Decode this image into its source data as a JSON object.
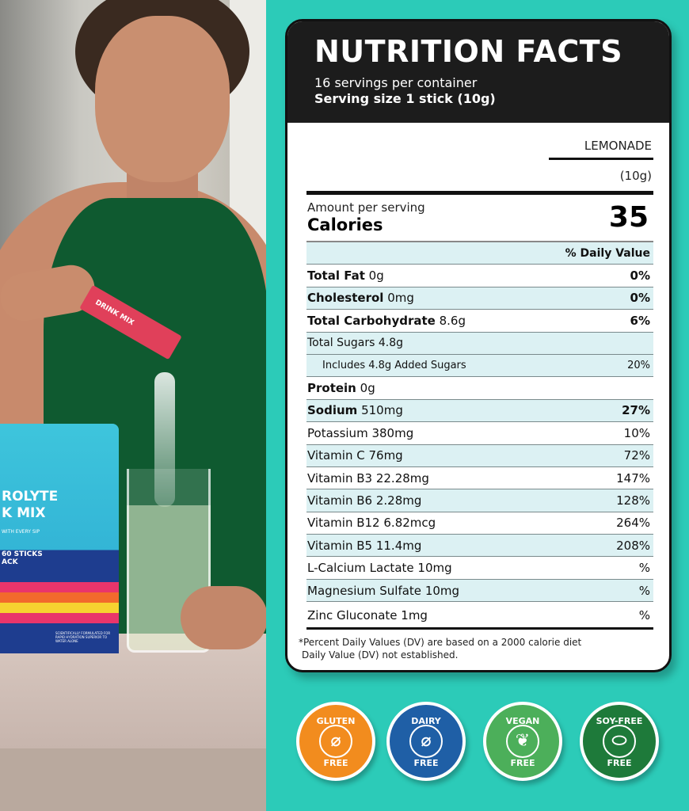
{
  "photo": {
    "package": {
      "line1": "ROLYTE",
      "line2": "K MIX",
      "tagline": "WITH EVERY SIP",
      "count": "60 STICKS",
      "pack": "ACK",
      "fine": "SCIENTIFICALLY FORMULATED FOR RAPID HYDRATION SUPERIOR TO WATER ALONE"
    },
    "stick_label": "DRINK MIX"
  },
  "label": {
    "title": "NUTRITION FACTS",
    "servings": "16 servings per container",
    "serving_size": "Serving size 1 stick (10g)",
    "flavor": "LEMONADE",
    "flavor_weight": "(10g)",
    "amount_per_serving": "Amount per serving",
    "calories_label": "Calories",
    "calories": "35",
    "dv_header": "% Daily Value",
    "rows": [
      {
        "name": "Total Fat",
        "amount": "0g",
        "dv": "0%"
      },
      {
        "name": "Cholesterol",
        "amount": "0mg",
        "dv": "0%"
      },
      {
        "name": "Total Carbohydrate",
        "amount": "8.6g",
        "dv": "6%"
      },
      {
        "name": "Total Sugars",
        "amount": "4.8g",
        "dv": ""
      },
      {
        "name": "Includes 4.8g Added Sugars",
        "amount": "",
        "dv": "20%"
      },
      {
        "name": "Protein",
        "amount": "0g",
        "dv": ""
      },
      {
        "name": "Sodium",
        "amount": "510mg",
        "dv": "27%"
      },
      {
        "name": "Potassium",
        "amount": "380mg",
        "dv": "10%"
      },
      {
        "name": "Vitamin C",
        "amount": "76mg",
        "dv": "72%"
      },
      {
        "name": "Vitamin B3",
        "amount": "22.28mg",
        "dv": "147%"
      },
      {
        "name": "Vitamin B6",
        "amount": "2.28mg",
        "dv": "128%"
      },
      {
        "name": "Vitamin B12",
        "amount": "6.82mcg",
        "dv": "264%"
      },
      {
        "name": "Vitamin B5",
        "amount": "11.4mg",
        "dv": "208%"
      },
      {
        "name": "L-Calcium Lactate",
        "amount": "10mg",
        "dv": "%"
      },
      {
        "name": "Magnesium Sulfate",
        "amount": "10mg",
        "dv": "%"
      },
      {
        "name": "Zinc Gluconate",
        "amount": "1mg",
        "dv": "%"
      }
    ],
    "footnote1": "*Percent Daily Values (DV) are based on a 2000 calorie diet",
    "footnote2": "Daily Value (DV) not established."
  },
  "badges": [
    {
      "top": "GLUTEN",
      "bottom": "FREE",
      "icon": "wheat-crossed-icon",
      "color": "#f28c1e"
    },
    {
      "top": "DAIRY",
      "bottom": "FREE",
      "icon": "milk-bottle-crossed-icon",
      "color": "#1f5fa6"
    },
    {
      "top": "VEGAN",
      "bottom": "FREE",
      "icon": "leaf-icon",
      "color": "#4caf5a"
    },
    {
      "top": "SOY-FREE",
      "bottom": "FREE",
      "icon": "soybean-icon",
      "color": "#1e7a3a"
    }
  ]
}
